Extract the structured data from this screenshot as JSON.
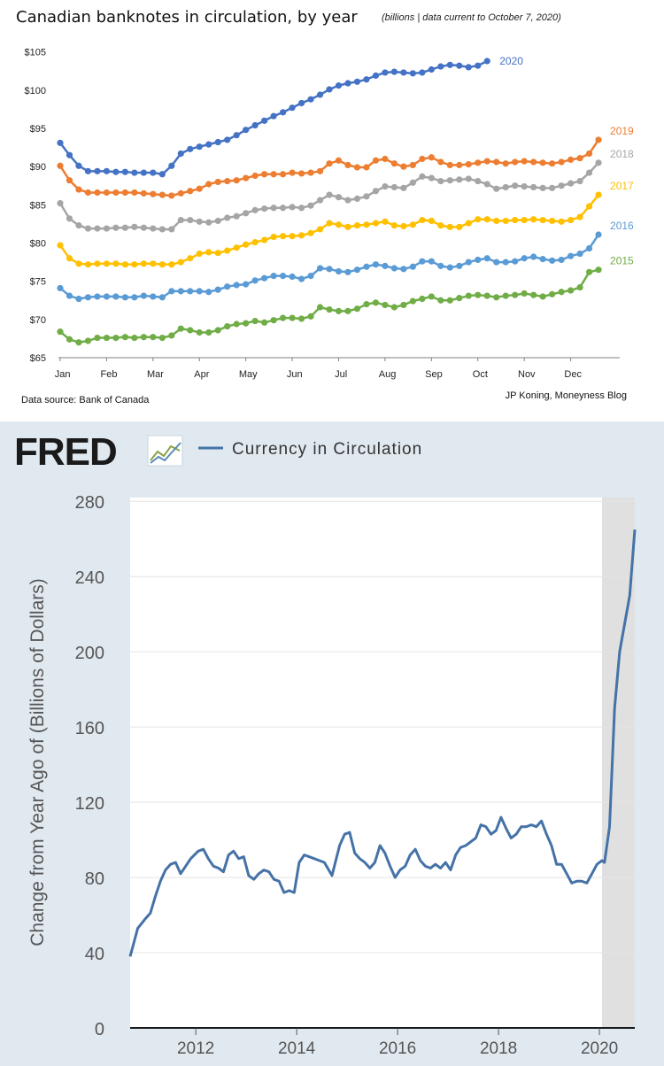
{
  "chart_data": [
    {
      "type": "line",
      "title": "Canadian banknotes in circulation, by year",
      "subtitle": "(billions | data current to October 7, 2020)",
      "source": "Data source: Bank of Canada",
      "credit": "JP Koning, Moneyness Blog",
      "y_ticks": [
        "$65",
        "$70",
        "$75",
        "$80",
        "$85",
        "$90",
        "$95",
        "$100",
        "$105"
      ],
      "ylim": [
        65,
        106
      ],
      "x_ticks": [
        "Jan",
        "Feb",
        "Mar",
        "Apr",
        "May",
        "Jun",
        "Jul",
        "Aug",
        "Sep",
        "Oct",
        "Nov",
        "Dec"
      ],
      "xlim": [
        0,
        12
      ],
      "grid": false,
      "series": [
        {
          "name": "2020",
          "color": "#4472c4",
          "x_step": 0.2,
          "values": [
            93.1,
            91.5,
            90.1,
            89.4,
            89.4,
            89.4,
            89.3,
            89.3,
            89.2,
            89.2,
            89.2,
            89.0,
            90.1,
            91.7,
            92.3,
            92.6,
            92.9,
            93.2,
            93.5,
            94.1,
            94.8,
            95.4,
            96.0,
            96.6,
            97.1,
            97.7,
            98.3,
            98.8,
            99.4,
            100.1,
            100.6,
            100.9,
            101.1,
            101.4,
            101.9,
            102.3,
            102.4,
            102.3,
            102.2,
            102.3,
            102.7,
            103.1,
            103.3,
            103.2,
            103.0,
            103.2,
            103.8
          ]
        },
        {
          "name": "2019",
          "color": "#ed7d31",
          "x_step": 0.2,
          "values": [
            90.1,
            88.2,
            87.0,
            86.6,
            86.6,
            86.6,
            86.6,
            86.6,
            86.6,
            86.5,
            86.4,
            86.3,
            86.2,
            86.5,
            86.8,
            87.1,
            87.7,
            88.0,
            88.1,
            88.2,
            88.5,
            88.8,
            89.0,
            89.0,
            89.0,
            89.2,
            89.1,
            89.2,
            89.4,
            90.4,
            90.8,
            90.2,
            89.9,
            89.9,
            90.8,
            91.0,
            90.4,
            90.0,
            90.2,
            91.0,
            91.2,
            90.6,
            90.2,
            90.2,
            90.3,
            90.5,
            90.7,
            90.6,
            90.4,
            90.6,
            90.7,
            90.6,
            90.5,
            90.4,
            90.6,
            90.9,
            91.1,
            91.7,
            93.5
          ]
        },
        {
          "name": "2018",
          "color": "#a5a5a5",
          "x_step": 0.2,
          "values": [
            85.2,
            83.2,
            82.3,
            81.9,
            81.9,
            81.9,
            82.0,
            82.0,
            82.1,
            82.0,
            81.9,
            81.8,
            81.8,
            83.0,
            83.0,
            82.8,
            82.7,
            82.9,
            83.3,
            83.5,
            83.9,
            84.3,
            84.5,
            84.6,
            84.6,
            84.7,
            84.6,
            84.9,
            85.6,
            86.3,
            86.0,
            85.6,
            85.8,
            86.1,
            86.8,
            87.4,
            87.3,
            87.2,
            87.9,
            88.7,
            88.5,
            88.1,
            88.2,
            88.3,
            88.4,
            88.1,
            87.7,
            87.1,
            87.3,
            87.5,
            87.4,
            87.3,
            87.2,
            87.2,
            87.5,
            87.8,
            88.1,
            89.2,
            90.5
          ]
        },
        {
          "name": "2017",
          "color": "#ffc000",
          "x_step": 0.2,
          "values": [
            79.7,
            78.0,
            77.3,
            77.2,
            77.3,
            77.3,
            77.3,
            77.2,
            77.2,
            77.3,
            77.3,
            77.2,
            77.2,
            77.5,
            78.0,
            78.6,
            78.8,
            78.7,
            79.0,
            79.4,
            79.8,
            80.1,
            80.4,
            80.8,
            80.9,
            80.9,
            81.0,
            81.3,
            81.8,
            82.6,
            82.4,
            82.1,
            82.3,
            82.4,
            82.6,
            82.8,
            82.3,
            82.2,
            82.4,
            83.0,
            82.9,
            82.3,
            82.1,
            82.1,
            82.6,
            83.1,
            83.1,
            82.9,
            82.9,
            83.0,
            83.0,
            83.1,
            83.0,
            82.9,
            82.8,
            83.0,
            83.4,
            84.8,
            86.3
          ]
        },
        {
          "name": "2016",
          "color": "#5b9bd5",
          "x_step": 0.2,
          "values": [
            74.1,
            73.1,
            72.7,
            72.9,
            73.0,
            73.0,
            73.0,
            72.9,
            72.9,
            73.1,
            73.0,
            72.9,
            73.7,
            73.7,
            73.7,
            73.7,
            73.6,
            73.9,
            74.3,
            74.5,
            74.6,
            75.1,
            75.4,
            75.7,
            75.7,
            75.6,
            75.3,
            75.7,
            76.7,
            76.6,
            76.3,
            76.2,
            76.5,
            76.9,
            77.2,
            77.0,
            76.7,
            76.6,
            76.9,
            77.6,
            77.6,
            77.0,
            76.8,
            77.0,
            77.5,
            77.8,
            78.0,
            77.5,
            77.5,
            77.6,
            78.0,
            78.2,
            77.9,
            77.7,
            77.8,
            78.3,
            78.6,
            79.3,
            81.1
          ]
        },
        {
          "name": "2015",
          "color": "#70ad47",
          "x_step": 0.2,
          "values": [
            68.4,
            67.4,
            67.0,
            67.2,
            67.6,
            67.6,
            67.6,
            67.7,
            67.6,
            67.7,
            67.7,
            67.6,
            67.9,
            68.8,
            68.6,
            68.3,
            68.3,
            68.6,
            69.1,
            69.4,
            69.5,
            69.8,
            69.6,
            69.9,
            70.2,
            70.2,
            70.1,
            70.4,
            71.6,
            71.3,
            71.1,
            71.1,
            71.4,
            72.0,
            72.2,
            71.9,
            71.6,
            71.9,
            72.4,
            72.7,
            73.0,
            72.5,
            72.5,
            72.8,
            73.1,
            73.2,
            73.1,
            72.9,
            73.1,
            73.2,
            73.4,
            73.2,
            73.0,
            73.3,
            73.6,
            73.8,
            74.2,
            76.2,
            76.5
          ]
        }
      ]
    },
    {
      "type": "line",
      "logo": "FRED",
      "legend": "Currency in Circulation",
      "ylabel": "Change from Year Ago of (Billions of Dollars)",
      "y_ticks": [
        0,
        40,
        80,
        120,
        160,
        200,
        240,
        280
      ],
      "ylim": [
        0,
        282
      ],
      "x_ticks": [
        "2012",
        "2014",
        "2016",
        "2018",
        "2020"
      ],
      "xlim": [
        2010.75,
        2020.75
      ],
      "recession": [
        2020.1,
        2020.75
      ],
      "series": [
        {
          "name": "Currency in Circulation",
          "color": "#4572a7",
          "x": [
            2010.75,
            2010.9,
            2011.05,
            2011.15,
            2011.25,
            2011.35,
            2011.45,
            2011.55,
            2011.65,
            2011.75,
            2011.85,
            2011.95,
            2012.1,
            2012.2,
            2012.3,
            2012.4,
            2012.5,
            2012.6,
            2012.7,
            2012.8,
            2012.9,
            2013.0,
            2013.1,
            2013.2,
            2013.3,
            2013.4,
            2013.5,
            2013.6,
            2013.7,
            2013.8,
            2013.9,
            2014.0,
            2014.1,
            2014.2,
            2014.3,
            2014.4,
            2014.5,
            2014.6,
            2014.75,
            2014.9,
            2015.0,
            2015.1,
            2015.2,
            2015.3,
            2015.4,
            2015.5,
            2015.6,
            2015.7,
            2015.8,
            2015.9,
            2016.0,
            2016.1,
            2016.2,
            2016.3,
            2016.4,
            2016.5,
            2016.6,
            2016.7,
            2016.8,
            2016.9,
            2017.0,
            2017.1,
            2017.2,
            2017.3,
            2017.4,
            2017.5,
            2017.6,
            2017.7,
            2017.8,
            2017.9,
            2018.0,
            2018.1,
            2018.2,
            2018.3,
            2018.4,
            2018.5,
            2018.6,
            2018.7,
            2018.8,
            2018.9,
            2019.0,
            2019.1,
            2019.2,
            2019.3,
            2019.4,
            2019.5,
            2019.6,
            2019.7,
            2019.8,
            2019.9,
            2020.0,
            2020.1,
            2020.15,
            2020.25,
            2020.35,
            2020.45,
            2020.55,
            2020.65,
            2020.75
          ],
          "values": [
            38,
            53,
            58,
            61,
            70,
            78,
            84,
            87,
            88,
            82,
            86,
            90,
            94,
            95,
            90,
            86,
            85,
            83,
            92,
            94,
            90,
            91,
            81,
            79,
            82,
            84,
            83,
            79,
            78,
            72,
            73,
            72,
            88,
            92,
            91,
            90,
            89,
            88,
            81,
            97,
            103,
            104,
            93,
            90,
            88,
            85,
            88,
            97,
            93,
            86,
            80,
            84,
            86,
            92,
            95,
            89,
            86,
            85,
            87,
            85,
            88,
            84,
            92,
            96,
            97,
            99,
            101,
            108,
            107,
            103,
            105,
            112,
            106,
            101,
            103,
            107,
            107,
            108,
            107,
            110,
            103,
            97,
            87,
            87,
            82,
            77,
            78,
            78,
            77,
            82,
            87,
            89,
            88,
            107,
            170,
            200,
            215,
            230,
            265
          ]
        }
      ]
    }
  ]
}
